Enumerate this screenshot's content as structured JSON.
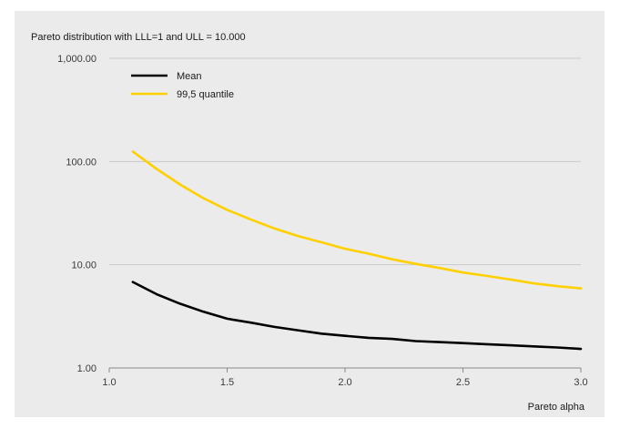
{
  "chart_data": {
    "type": "line",
    "title": "Pareto distribution with LLL=1 and ULL = 10.000",
    "xlabel": "Pareto alpha",
    "ylabel": "",
    "xlim": [
      1.0,
      3.0
    ],
    "ylim": [
      1,
      1000
    ],
    "yscale": "log",
    "x_ticks": [
      "1.0",
      "1.5",
      "2.0",
      "2.5",
      "3.0"
    ],
    "x_tick_values": [
      1.0,
      1.5,
      2.0,
      2.5,
      3.0
    ],
    "y_ticks": [
      "1.00",
      "10.00",
      "100.00",
      "1,000.00"
    ],
    "y_tick_values": [
      1,
      10,
      100,
      1000
    ],
    "grid": "horizontal",
    "legend_position": "top-left",
    "series": [
      {
        "name": "Mean",
        "color": "#000000",
        "x": [
          1.1,
          1.2,
          1.3,
          1.4,
          1.5,
          1.6,
          1.7,
          1.8,
          1.9,
          2.0,
          2.1,
          2.2,
          2.3,
          2.4,
          2.5,
          2.6,
          2.7,
          2.8,
          2.9,
          3.0
        ],
        "values": [
          6.8,
          5.2,
          4.2,
          3.5,
          3.0,
          2.75,
          2.5,
          2.32,
          2.15,
          2.05,
          1.96,
          1.91,
          1.82,
          1.78,
          1.74,
          1.7,
          1.66,
          1.62,
          1.58,
          1.53
        ]
      },
      {
        "name": "99,5 quantile",
        "color": "#ffd000",
        "x": [
          1.1,
          1.2,
          1.3,
          1.4,
          1.5,
          1.6,
          1.7,
          1.8,
          1.9,
          2.0,
          2.1,
          2.2,
          2.3,
          2.4,
          2.5,
          2.6,
          2.7,
          2.8,
          2.9,
          3.0
        ],
        "values": [
          125,
          85,
          60,
          44,
          34,
          27.5,
          22.5,
          19,
          16.5,
          14.3,
          12.8,
          11.3,
          10.2,
          9.3,
          8.4,
          7.8,
          7.2,
          6.6,
          6.2,
          5.9
        ]
      }
    ]
  }
}
